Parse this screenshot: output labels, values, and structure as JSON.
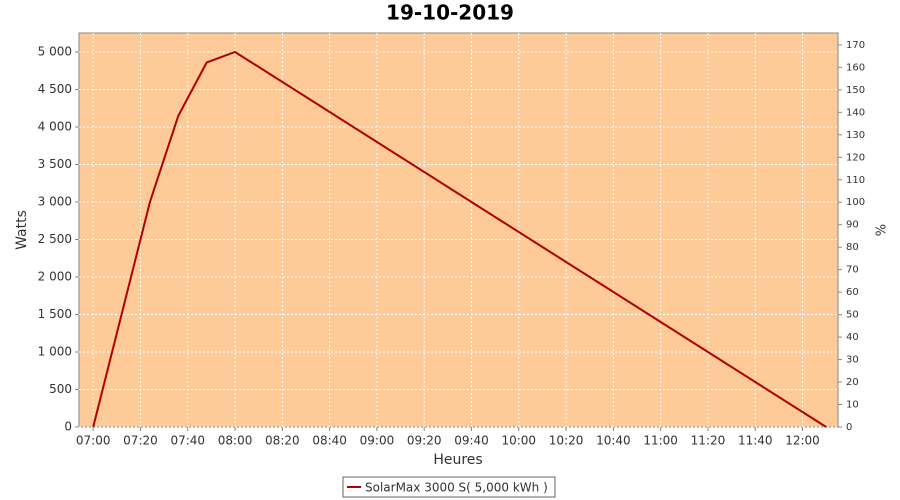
{
  "chart_data": {
    "type": "line",
    "title": "19-10-2019",
    "x_label": "Heures",
    "y_label": "Watts",
    "y2_label": "%",
    "x": [
      "07:00",
      "07:24",
      "07:36",
      "07:48",
      "08:00",
      "12:10"
    ],
    "series": [
      {
        "name": "SolarMax 3000 S( 5,000 kWh )",
        "color": "#b00000",
        "values": [
          0,
          3000,
          4150,
          4860,
          5000,
          0
        ]
      }
    ],
    "xlim": [
      "06:54",
      "12:15"
    ],
    "xticks": [
      "07:00",
      "07:20",
      "07:40",
      "08:00",
      "08:20",
      "08:40",
      "09:00",
      "09:20",
      "09:40",
      "10:00",
      "10:20",
      "10:40",
      "11:00",
      "11:20",
      "11:40",
      "12:00"
    ],
    "ylim": [
      0,
      5253
    ],
    "yticks": [
      0,
      500,
      {
        "value": 1000,
        "label": "1 000"
      },
      {
        "value": 1500,
        "label": "1 500"
      },
      {
        "value": 2000,
        "label": "2 000"
      },
      {
        "value": 2500,
        "label": "2 500"
      },
      {
        "value": 3000,
        "label": "3 000"
      },
      {
        "value": 3500,
        "label": "3 500"
      },
      {
        "value": 4000,
        "label": "4 000"
      },
      {
        "value": 4500,
        "label": "4 500"
      },
      {
        "value": 5000,
        "label": "5 000"
      }
    ],
    "y2lim": [
      0,
      175.3
    ],
    "y2ticks": [
      0,
      10,
      20,
      30,
      40,
      50,
      60,
      70,
      80,
      90,
      100,
      110,
      120,
      130,
      140,
      150,
      160,
      170
    ],
    "grid": true,
    "plot_background": "#fdca98",
    "legend_position": "bottom"
  }
}
